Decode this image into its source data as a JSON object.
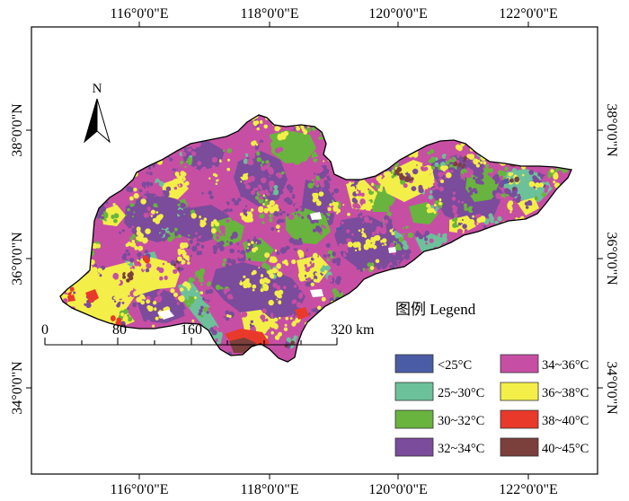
{
  "graticule": {
    "longitude_labels": [
      "116°0'0\"E",
      "118°0'0\"E",
      "120°0'0\"E",
      "122°0'0\"E"
    ],
    "latitude_labels": [
      "38°0'0\"N",
      "36°0'0\"N",
      "34°0'0\"N"
    ]
  },
  "north_arrow": {
    "label": "N"
  },
  "scale_bar": {
    "labels": [
      "0",
      "80",
      "160",
      "320 km"
    ]
  },
  "legend": {
    "title": "图例 Legend",
    "items": [
      {
        "label": "<25°C",
        "color": "#4b5ca6"
      },
      {
        "label": "25~30°C",
        "color": "#6cc19a"
      },
      {
        "label": "30~32°C",
        "color": "#68b43e"
      },
      {
        "label": "32~34°C",
        "color": "#7b4b9c"
      },
      {
        "label": "34~36°C",
        "color": "#c64fa4"
      },
      {
        "label": "36~38°C",
        "color": "#f3ef48"
      },
      {
        "label": "38~40°C",
        "color": "#e8392b"
      },
      {
        "label": "40~45°C",
        "color": "#7b3f3c"
      }
    ]
  }
}
